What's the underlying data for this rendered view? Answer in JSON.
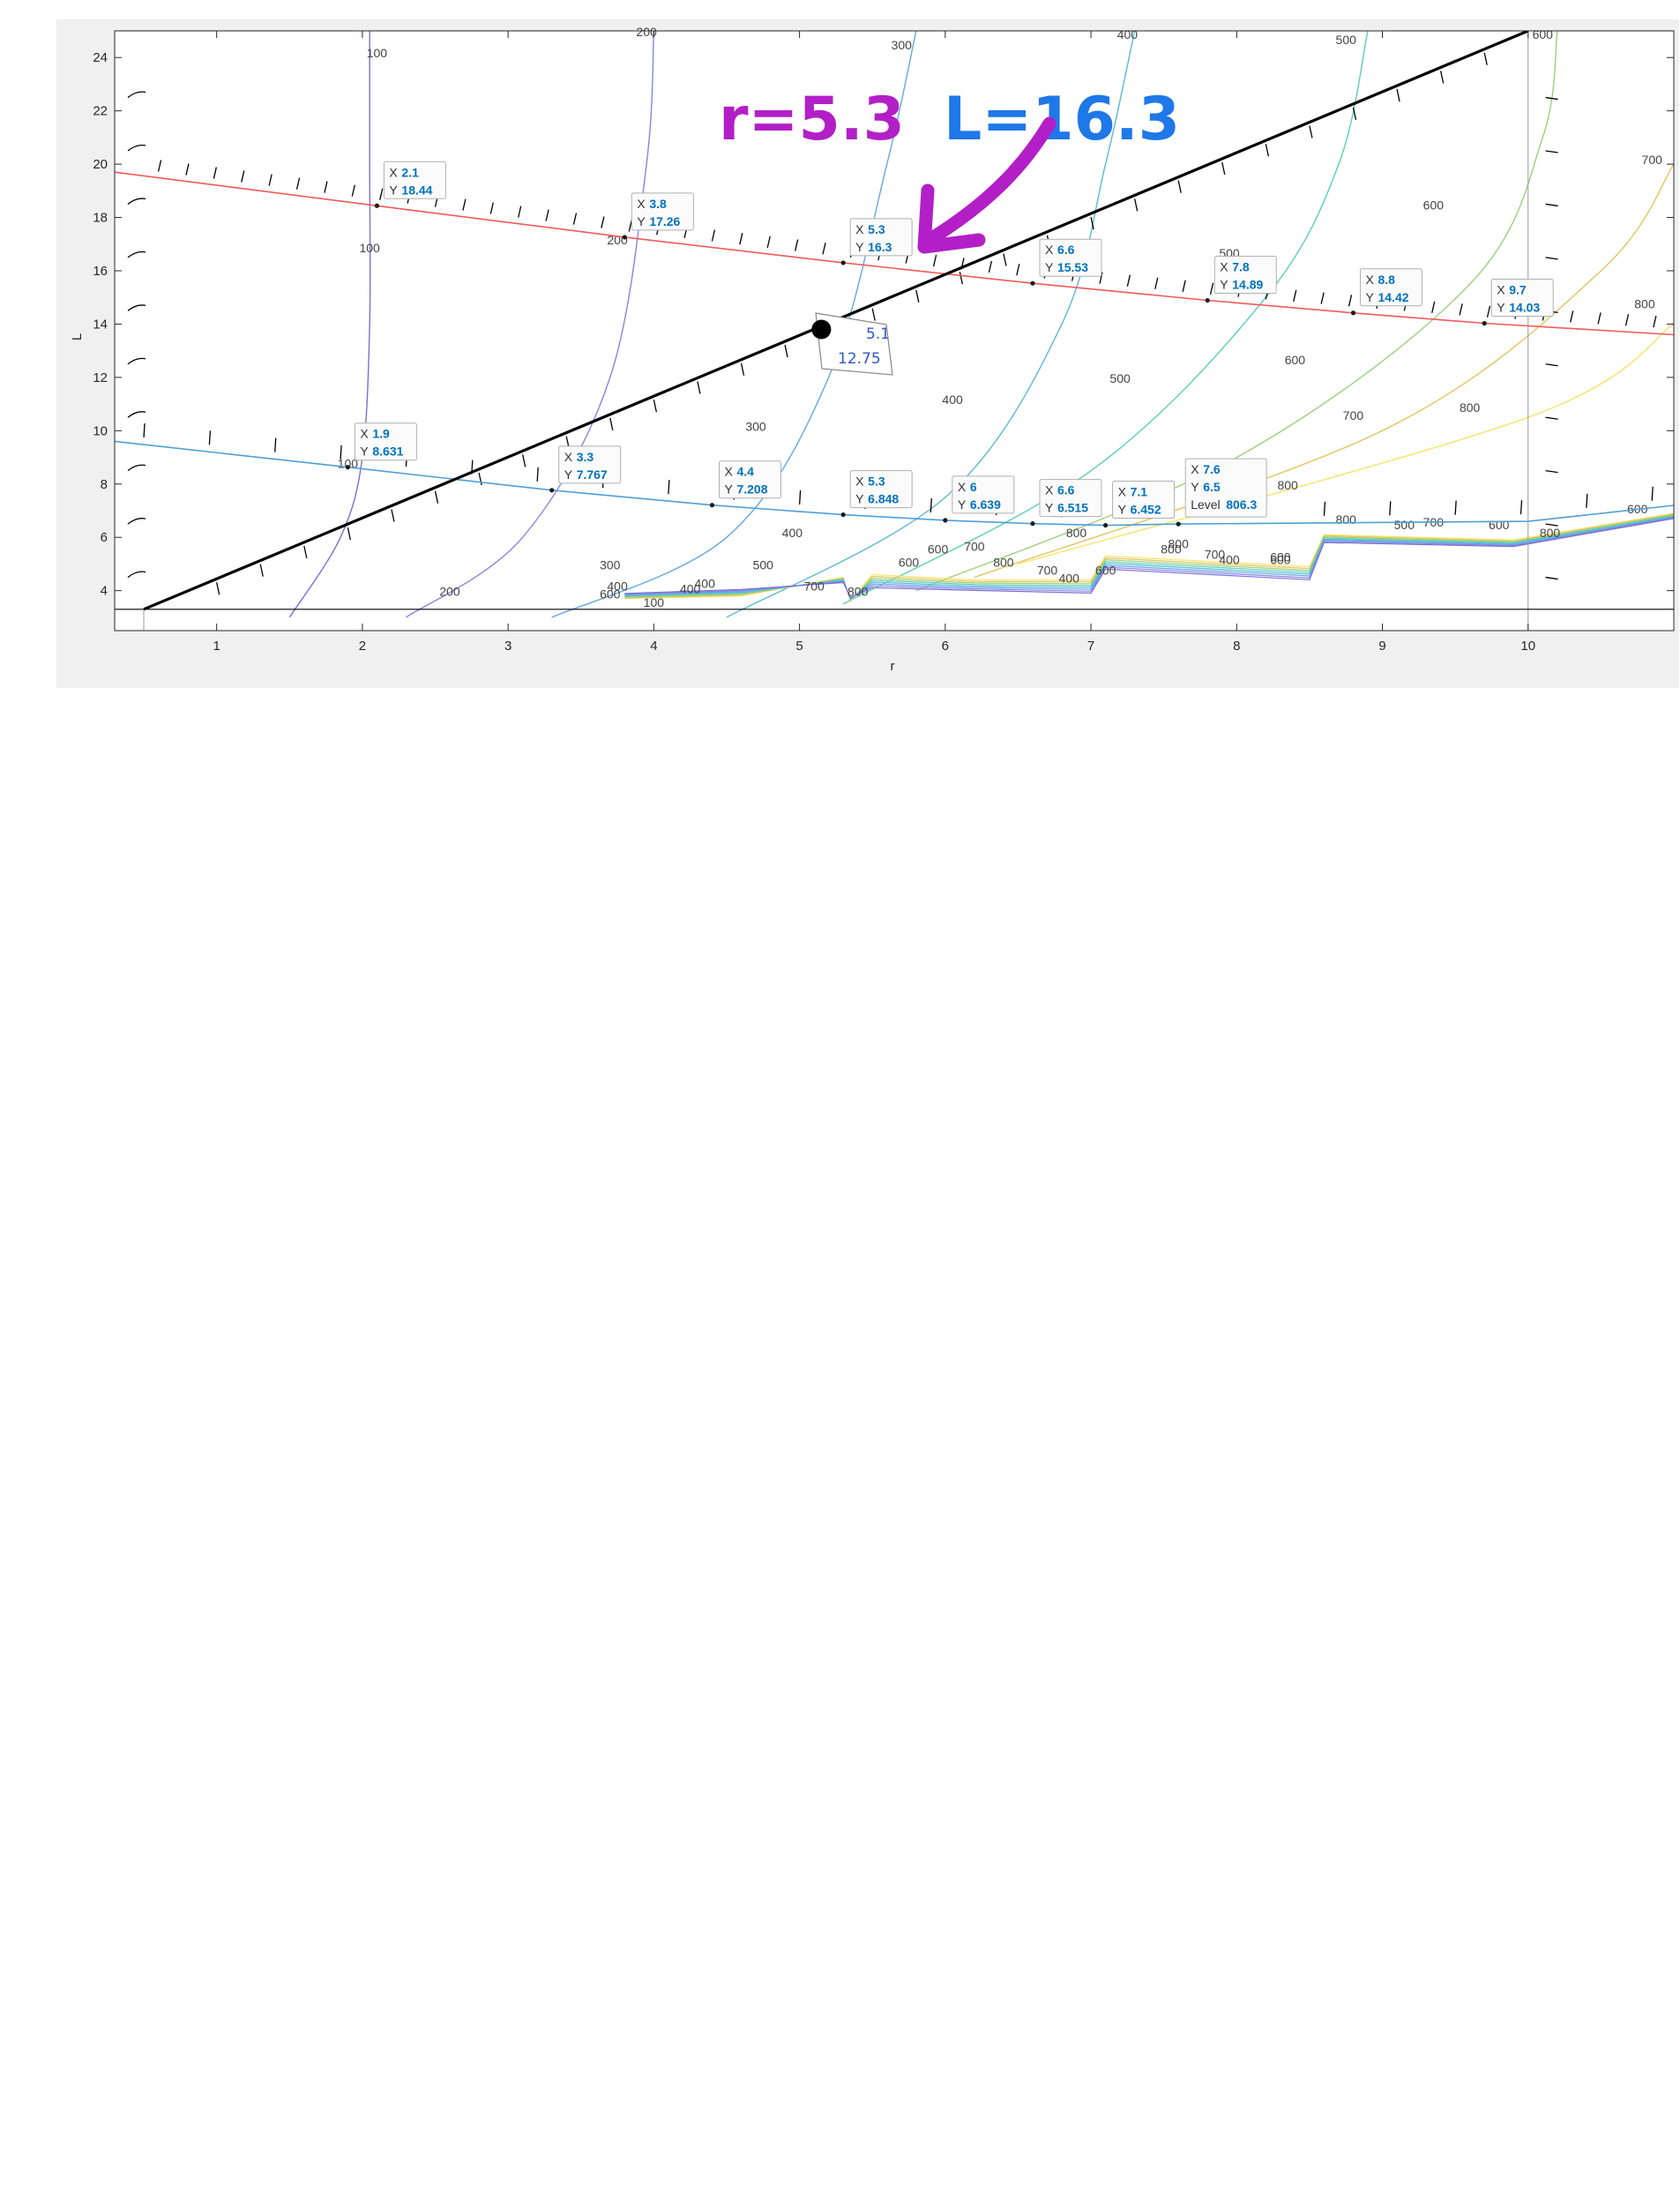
{
  "colors": {
    "figure_bg": "#f0f0f0",
    "axes_bg": "#ffffff",
    "red_line": "#f05a5a",
    "blue_line": "#4f9fd6",
    "black_line": "#000000",
    "annotation_purple": "#b21fc7",
    "annotation_blue": "#1f78e8",
    "note_blue": "#2f57c6",
    "tip_value": "#0072bd"
  },
  "annotation": {
    "r_text": "r=5.3",
    "l_text": "L=16.3",
    "arrow_icon": "hand-drawn-arrow",
    "note_line1": "5.1",
    "note_line2": "12.75"
  },
  "chart_data": {
    "type": "line",
    "subtype": "contour plot with overlaid lines and data tips",
    "title": "",
    "xlabel": "r",
    "ylabel": "L",
    "xlim": [
      0.3,
      11
    ],
    "ylim": [
      2.5,
      25
    ],
    "xticks": [
      1,
      2,
      3,
      4,
      5,
      6,
      7,
      8,
      9,
      10
    ],
    "yticks": [
      4,
      6,
      8,
      10,
      12,
      14,
      16,
      18,
      20,
      22,
      24
    ],
    "grid": false,
    "series": [
      {
        "color": "#f05a5a",
        "x": [
          0.3,
          2.1,
          3.8,
          5.3,
          6.6,
          7.8,
          8.8,
          9.7,
          11
        ],
        "y": [
          19.7,
          18.44,
          17.26,
          16.3,
          15.53,
          14.89,
          14.42,
          14.03,
          13.6
        ]
      },
      {
        "color": "#4f9fd6",
        "x": [
          0.3,
          1.9,
          3.3,
          4.4,
          5.3,
          6,
          6.6,
          7.1,
          7.6,
          10,
          11
        ],
        "y": [
          9.6,
          8.631,
          7.767,
          7.208,
          6.848,
          6.639,
          6.515,
          6.452,
          6.5,
          6.6,
          7.2
        ]
      },
      {
        "color": "#000000",
        "x": [
          0.5,
          10
        ],
        "y": [
          3.3,
          25
        ]
      }
    ],
    "marked_point": {
      "x": 5.15,
      "y": 13.8
    },
    "datatips": [
      {
        "x": "2.1",
        "y": "18.44"
      },
      {
        "x": "3.8",
        "y": "17.26"
      },
      {
        "x": "5.3",
        "y": "16.3"
      },
      {
        "x": "6.6",
        "y": "15.53"
      },
      {
        "x": "7.8",
        "y": "14.89"
      },
      {
        "x": "8.8",
        "y": "14.42"
      },
      {
        "x": "9.7",
        "y": "14.03"
      },
      {
        "x": "1.9",
        "y": "8.631"
      },
      {
        "x": "3.3",
        "y": "7.767"
      },
      {
        "x": "4.4",
        "y": "7.208"
      },
      {
        "x": "5.3",
        "y": "6.848"
      },
      {
        "x": "6",
        "y": "6.639"
      },
      {
        "x": "6.6",
        "y": "6.515"
      },
      {
        "x": "7.1",
        "y": "6.452"
      },
      {
        "x": "7.6",
        "y": "6.5",
        "level": "806.3"
      }
    ],
    "tip_labels": {
      "x": "X",
      "y": "Y",
      "level": "Level"
    },
    "contours": [
      {
        "level": "100",
        "color": "#7b6fd6",
        "x": [
          1.5,
          1.85,
          2.0,
          2.05,
          2.05,
          2.05
        ],
        "y": [
          3.0,
          6.0,
          9.0,
          14.0,
          20.0,
          25.0
        ]
      },
      {
        "level": "200",
        "color": "#8a84e0",
        "x": [
          2.3,
          3.1,
          3.7,
          3.95,
          4.0
        ],
        "y": [
          3.0,
          6.0,
          12.0,
          20.0,
          25.0
        ]
      },
      {
        "level": "300",
        "color": "#64a7e3",
        "x": [
          3.3,
          4.5,
          5.2,
          5.6,
          5.8
        ],
        "y": [
          3.0,
          6.0,
          12.0,
          20.0,
          25.0
        ]
      },
      {
        "level": "400",
        "color": "#5cb8d9",
        "x": [
          4.5,
          6.0,
          6.8,
          7.1,
          7.3
        ],
        "y": [
          3.0,
          7.5,
          14.0,
          20.0,
          25.0
        ]
      },
      {
        "level": "500",
        "color": "#5ccfb5",
        "x": [
          5.3,
          7.0,
          8.2,
          8.7,
          8.9
        ],
        "y": [
          3.5,
          8.5,
          15.0,
          20.0,
          25.0
        ]
      },
      {
        "level": "600",
        "color": "#9bd17a",
        "x": [
          5.8,
          8.0,
          9.6,
          10.1,
          10.2
        ],
        "y": [
          4.0,
          9.0,
          15.5,
          21.0,
          25.0
        ]
      },
      {
        "level": "700",
        "color": "#e3c45e",
        "x": [
          6.2,
          9.0,
          10.5,
          11.0
        ],
        "y": [
          4.5,
          10.0,
          16.0,
          20.0
        ]
      },
      {
        "level": "800",
        "color": "#f7e36a",
        "x": [
          6.5,
          10.0,
          11.0
        ],
        "y": [
          5.0,
          10.5,
          14.0
        ]
      }
    ],
    "contour_labels": [
      {
        "text": "100",
        "x": 2.1,
        "y": 24.0,
        "color": "#444444"
      },
      {
        "text": "100",
        "x": 2.05,
        "y": 16.7,
        "color": "#444444"
      },
      {
        "text": "100",
        "x": 1.9,
        "y": 8.6,
        "color": "#444444"
      },
      {
        "text": "200",
        "x": 3.95,
        "y": 24.8,
        "color": "#444444"
      },
      {
        "text": "200",
        "x": 3.75,
        "y": 17.0,
        "color": "#444444"
      },
      {
        "text": "200",
        "x": 2.6,
        "y": 3.8,
        "color": "#444444"
      },
      {
        "text": "300",
        "x": 5.7,
        "y": 24.3,
        "color": "#444444"
      },
      {
        "text": "300",
        "x": 4.7,
        "y": 10.0,
        "color": "#444444"
      },
      {
        "text": "300",
        "x": 3.7,
        "y": 4.8,
        "color": "#444444"
      },
      {
        "text": "400",
        "x": 7.25,
        "y": 24.7,
        "color": "#444444"
      },
      {
        "text": "400",
        "x": 6.05,
        "y": 11.0,
        "color": "#444444"
      },
      {
        "text": "400",
        "x": 4.95,
        "y": 6.0,
        "color": "#444444"
      },
      {
        "text": "400",
        "x": 4.25,
        "y": 3.9,
        "color": "#444444"
      },
      {
        "text": "500",
        "x": 8.75,
        "y": 24.5,
        "color": "#444444"
      },
      {
        "text": "500",
        "x": 7.2,
        "y": 11.8,
        "color": "#444444"
      },
      {
        "text": "500",
        "x": 7.95,
        "y": 16.5,
        "color": "#444444"
      },
      {
        "text": "500",
        "x": 4.75,
        "y": 4.8,
        "color": "#444444"
      },
      {
        "text": "600",
        "x": 10.1,
        "y": 24.7,
        "color": "#444444"
      },
      {
        "text": "600",
        "x": 9.35,
        "y": 18.3,
        "color": "#444444"
      },
      {
        "text": "600",
        "x": 8.4,
        "y": 12.5,
        "color": "#444444"
      },
      {
        "text": "600",
        "x": 5.95,
        "y": 5.4,
        "color": "#444444"
      },
      {
        "text": "600",
        "x": 5.75,
        "y": 4.9,
        "color": "#444444"
      },
      {
        "text": "600",
        "x": 8.3,
        "y": 5.1,
        "color": "#444444"
      },
      {
        "text": "700",
        "x": 10.85,
        "y": 20.0,
        "color": "#444444"
      },
      {
        "text": "700",
        "x": 8.8,
        "y": 10.4,
        "color": "#444444"
      },
      {
        "text": "700",
        "x": 6.2,
        "y": 5.5,
        "color": "#444444"
      },
      {
        "text": "800",
        "x": 10.8,
        "y": 14.6,
        "color": "#444444"
      },
      {
        "text": "800",
        "x": 9.6,
        "y": 10.7,
        "color": "#444444"
      },
      {
        "text": "800",
        "x": 8.35,
        "y": 7.8,
        "color": "#444444"
      },
      {
        "text": "800",
        "x": 6.9,
        "y": 6.0,
        "color": "#444444"
      },
      {
        "text": "800",
        "x": 7.6,
        "y": 5.6,
        "color": "#444444"
      },
      {
        "text": "800",
        "x": 8.75,
        "y": 6.5,
        "color": "#444444"
      },
      {
        "text": "800",
        "x": 10.15,
        "y": 6.0,
        "color": "#444444"
      },
      {
        "text": "500",
        "x": 9.15,
        "y": 6.3,
        "color": "#444444"
      },
      {
        "text": "700",
        "x": 9.35,
        "y": 6.4,
        "color": "#444444"
      },
      {
        "text": "600",
        "x": 9.8,
        "y": 6.3,
        "color": "#444444"
      },
      {
        "text": "600",
        "x": 10.75,
        "y": 6.9,
        "color": "#444444"
      },
      {
        "text": "700",
        "x": 5.1,
        "y": 4.0,
        "color": "#444444"
      },
      {
        "text": "800",
        "x": 5.4,
        "y": 3.8,
        "color": "#444444"
      },
      {
        "text": "400",
        "x": 3.75,
        "y": 4.0,
        "color": "#444444"
      },
      {
        "text": "600",
        "x": 3.7,
        "y": 3.7,
        "color": "#444444"
      },
      {
        "text": "100",
        "x": 4.0,
        "y": 3.4,
        "color": "#444444"
      },
      {
        "text": "400",
        "x": 4.35,
        "y": 4.1,
        "color": "#444444"
      },
      {
        "text": "800",
        "x": 6.4,
        "y": 4.9,
        "color": "#444444"
      },
      {
        "text": "700",
        "x": 6.7,
        "y": 4.6,
        "color": "#444444"
      },
      {
        "text": "400",
        "x": 6.85,
        "y": 4.3,
        "color": "#444444"
      },
      {
        "text": "600",
        "x": 7.1,
        "y": 4.6,
        "color": "#444444"
      },
      {
        "text": "800",
        "x": 7.55,
        "y": 5.4,
        "color": "#444444"
      },
      {
        "text": "700",
        "x": 7.85,
        "y": 5.2,
        "color": "#444444"
      },
      {
        "text": "400",
        "x": 7.95,
        "y": 5.0,
        "color": "#444444"
      },
      {
        "text": "600",
        "x": 8.3,
        "y": 5.0,
        "color": "#444444"
      }
    ]
  }
}
